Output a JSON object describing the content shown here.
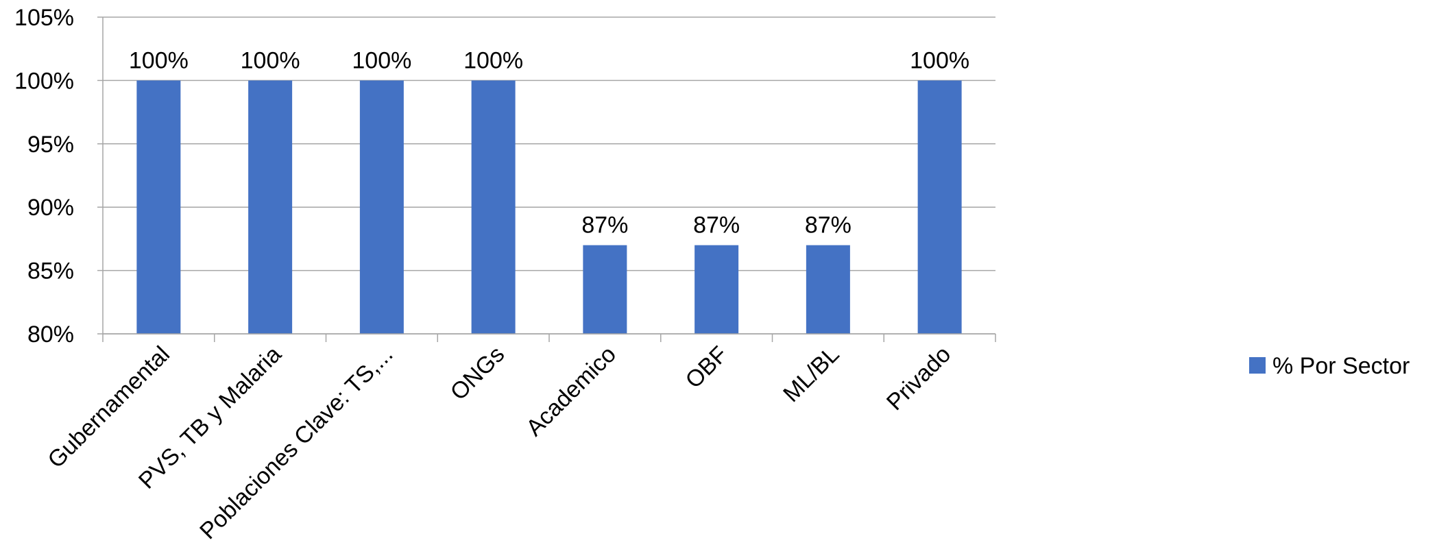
{
  "chart_data": {
    "type": "bar",
    "categories": [
      "Gubernamental",
      "PVS,  TB y Malaria",
      "Poblaciones Clave: TS,...",
      "ONGs",
      "Academico",
      "OBF",
      "ML/BL",
      "Privado"
    ],
    "series": [
      {
        "name": "% Por Sector",
        "values": [
          100,
          100,
          100,
          100,
          87,
          87,
          87,
          100
        ],
        "labels": [
          "100%",
          "100%",
          "100%",
          "100%",
          "87%",
          "87%",
          "87%",
          "100%"
        ],
        "color": "#4472C4"
      }
    ],
    "yticks": [
      "80%",
      "85%",
      "90%",
      "95%",
      "100%",
      "105%"
    ],
    "ytick_values": [
      80,
      85,
      90,
      95,
      100,
      105
    ],
    "ylim": [
      80,
      105
    ],
    "title": "",
    "xlabel": "",
    "ylabel": "",
    "grid": true,
    "legend_position": "right"
  }
}
